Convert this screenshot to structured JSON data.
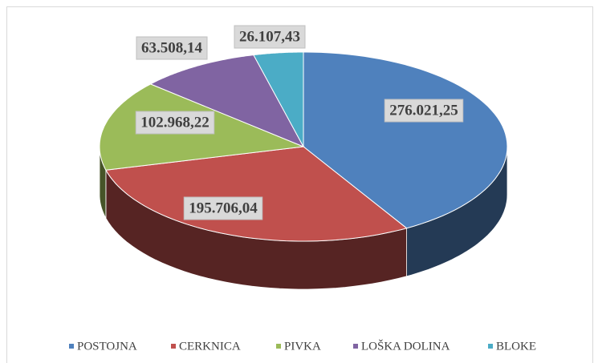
{
  "chart_data": {
    "type": "pie3d",
    "categories": [
      "POSTOJNA",
      "CERKNICA",
      "PIVKA",
      "LOŠKA DOLINA",
      "BLOKE"
    ],
    "values": [
      276021.25,
      195706.04,
      102968.22,
      63508.14,
      26107.43
    ],
    "value_labels": [
      "276.021,25",
      "195.706,04",
      "102.968,22",
      "63.508,14",
      "26.107,43"
    ],
    "colors": [
      "#4f81bd",
      "#c0504d",
      "#9bbb59",
      "#8064a2",
      "#4bacc6"
    ],
    "legend": "bottom"
  }
}
